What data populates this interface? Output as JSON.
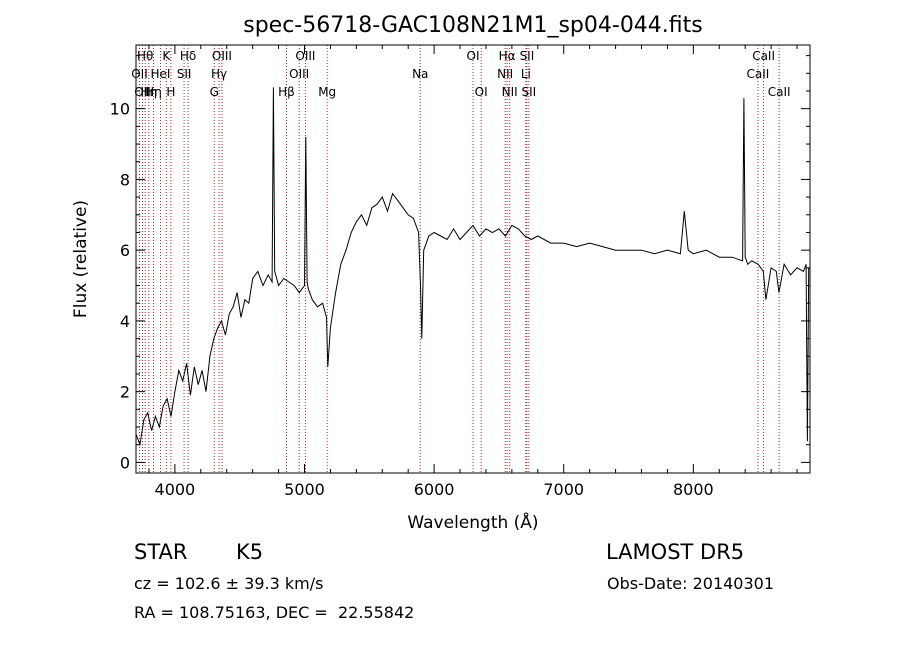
{
  "chart_data": {
    "type": "line",
    "title": "spec-56718-GAC108N21M1_sp04-044.fits",
    "xlabel": "Wavelength (Å)",
    "ylabel": "Flux (relative)",
    "xlim": [
      3700,
      8900
    ],
    "ylim": [
      -0.3,
      11.8
    ],
    "xticks": [
      4000,
      5000,
      6000,
      7000,
      8000
    ],
    "yticks": [
      0,
      2,
      4,
      6,
      8,
      10
    ],
    "grid": false,
    "line_color": "#000000",
    "marker_color": "#b22222",
    "series": [
      {
        "x": [
          3700,
          3730,
          3760,
          3790,
          3820,
          3850,
          3880,
          3910,
          3940,
          3970,
          4000,
          4030,
          4060,
          4090,
          4120,
          4150,
          4180,
          4210,
          4240,
          4270,
          4300,
          4330,
          4360,
          4390,
          4420,
          4450,
          4480,
          4510,
          4540,
          4570,
          4600,
          4640,
          4680,
          4720,
          4750,
          4760,
          4770,
          4800,
          4840,
          4880,
          4920,
          4960,
          5000,
          5010,
          5020,
          5030,
          5060,
          5100,
          5140,
          5170,
          5180,
          5200,
          5240,
          5280,
          5320,
          5360,
          5400,
          5440,
          5480,
          5520,
          5560,
          5600,
          5640,
          5680,
          5720,
          5760,
          5800,
          5840,
          5880,
          5895,
          5905,
          5920,
          5960,
          6000,
          6050,
          6100,
          6150,
          6200,
          6250,
          6300,
          6350,
          6400,
          6450,
          6500,
          6550,
          6600,
          6650,
          6700,
          6750,
          6800,
          6900,
          7000,
          7100,
          7200,
          7300,
          7400,
          7500,
          7600,
          7700,
          7800,
          7900,
          7930,
          7960,
          8000,
          8100,
          8200,
          8300,
          8380,
          8390,
          8400,
          8420,
          8450,
          8500,
          8540,
          8560,
          8600,
          8640,
          8660,
          8700,
          8750,
          8800,
          8850,
          8870,
          8880,
          8890
        ],
        "y": [
          0.8,
          0.5,
          1.2,
          1.4,
          0.9,
          1.3,
          1.0,
          1.6,
          1.8,
          1.3,
          2.0,
          2.6,
          2.3,
          2.8,
          1.9,
          2.7,
          2.2,
          2.6,
          2.0,
          3.0,
          3.5,
          3.8,
          4.0,
          3.6,
          4.2,
          4.4,
          4.8,
          4.1,
          4.6,
          4.5,
          5.2,
          5.4,
          5.0,
          5.3,
          5.1,
          10.6,
          5.4,
          5.0,
          5.2,
          5.1,
          5.0,
          4.8,
          5.0,
          9.2,
          5.1,
          4.9,
          4.6,
          4.4,
          4.5,
          4.1,
          2.7,
          3.8,
          4.8,
          5.6,
          6.0,
          6.5,
          6.8,
          7.0,
          6.7,
          7.2,
          7.3,
          7.5,
          7.1,
          7.6,
          7.4,
          7.2,
          7.0,
          6.9,
          6.5,
          5.0,
          3.5,
          6.0,
          6.4,
          6.5,
          6.4,
          6.3,
          6.6,
          6.3,
          6.5,
          6.7,
          6.4,
          6.6,
          6.5,
          6.6,
          6.4,
          6.7,
          6.6,
          6.4,
          6.3,
          6.4,
          6.2,
          6.2,
          6.1,
          6.2,
          6.1,
          6.0,
          6.0,
          6.0,
          5.9,
          6.0,
          5.9,
          7.1,
          6.0,
          5.9,
          6.0,
          5.8,
          5.8,
          5.7,
          10.3,
          5.8,
          5.6,
          5.7,
          5.6,
          5.4,
          4.6,
          5.5,
          5.4,
          4.8,
          5.6,
          5.3,
          5.5,
          5.4,
          5.6,
          0.6,
          5.5
        ]
      }
    ],
    "lines": [
      {
        "x": 3727,
        "label": "OII",
        "row": 1
      },
      {
        "x": 3750,
        "label": "OII",
        "row": 2
      },
      {
        "x": 3771,
        "label": "Hθ",
        "row": 0
      },
      {
        "x": 3799,
        "label": "Hη",
        "row": 2
      },
      {
        "x": 3835,
        "label": "Hη",
        "row": 2
      },
      {
        "x": 3889,
        "label": "HeI",
        "row": 1
      },
      {
        "x": 3934,
        "label": "K",
        "row": 0
      },
      {
        "x": 3969,
        "label": "H",
        "row": 2
      },
      {
        "x": 4071,
        "label": "SII",
        "row": 1
      },
      {
        "x": 4102,
        "label": "Hδ",
        "row": 0
      },
      {
        "x": 4304,
        "label": "G",
        "row": 2
      },
      {
        "x": 4341,
        "label": "Hγ",
        "row": 1
      },
      {
        "x": 4363,
        "label": "OIII",
        "row": 0
      },
      {
        "x": 4861,
        "label": "Hβ",
        "row": 2
      },
      {
        "x": 4959,
        "label": "OIII",
        "row": 1
      },
      {
        "x": 5007,
        "label": "OIII",
        "row": 0
      },
      {
        "x": 5175,
        "label": "Mg",
        "row": 2
      },
      {
        "x": 5893,
        "label": "Na",
        "row": 1
      },
      {
        "x": 6300,
        "label": "OI",
        "row": 0
      },
      {
        "x": 6363,
        "label": "OI",
        "row": 2
      },
      {
        "x": 6548,
        "label": "NII",
        "row": 1
      },
      {
        "x": 6563,
        "label": "Hα",
        "row": 0
      },
      {
        "x": 6583,
        "label": "NII",
        "row": 2
      },
      {
        "x": 6708,
        "label": "Li",
        "row": 1
      },
      {
        "x": 6716,
        "label": "SII",
        "row": 0
      },
      {
        "x": 6731,
        "label": "SII",
        "row": 2
      },
      {
        "x": 8498,
        "label": "CaII",
        "row": 1
      },
      {
        "x": 8542,
        "label": "CaII",
        "row": 0
      },
      {
        "x": 8662,
        "label": "CaII",
        "row": 2
      }
    ]
  },
  "info": {
    "object_class": "STAR",
    "object_subclass": "K5",
    "survey": "LAMOST DR5",
    "cz": "cz = 102.6 ± 39.3 km/s",
    "obs_date": "Obs-Date: 20140301",
    "radec": "RA = 108.75163, DEC =  22.55842"
  }
}
